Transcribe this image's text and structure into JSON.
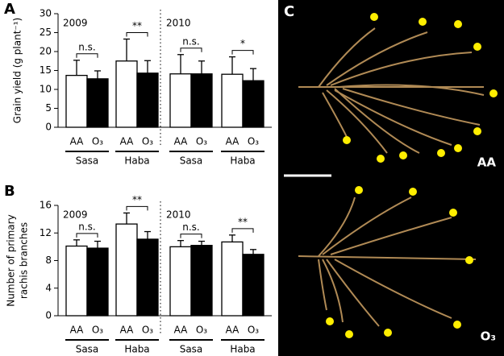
{
  "chart_data": [
    {
      "type": "bar",
      "panel": "A",
      "ylabel": [
        "Grain yield (g plant⁻¹)"
      ],
      "categories": [
        "AA",
        "O₃",
        "AA",
        "O₃",
        "AA",
        "O₃",
        "AA",
        "O₃"
      ],
      "groups": [
        "Sasa",
        "Haba",
        "Sasa",
        "Haba"
      ],
      "years": [
        "2009",
        "2010"
      ],
      "values": [
        13.7,
        12.8,
        17.5,
        14.3,
        14.1,
        14.1,
        14.0,
        12.3
      ],
      "errors": [
        4.0,
        2.1,
        5.8,
        3.3,
        5.1,
        3.4,
        4.6,
        3.2
      ],
      "colors": [
        "#ffffff",
        "#000000",
        "#ffffff",
        "#000000",
        "#ffffff",
        "#000000",
        "#ffffff",
        "#000000"
      ],
      "significance": [
        "n.s.",
        "**",
        "n.s.",
        "*"
      ],
      "ylim": [
        0,
        30
      ],
      "yticks": [
        0,
        5,
        10,
        15,
        20,
        25,
        30
      ]
    },
    {
      "type": "bar",
      "panel": "B",
      "ylabel": [
        "Number of primary",
        "rachis branches"
      ],
      "categories": [
        "AA",
        "O₃",
        "AA",
        "O₃",
        "AA",
        "O₃",
        "AA",
        "O₃"
      ],
      "groups": [
        "Sasa",
        "Haba",
        "Sasa",
        "Haba"
      ],
      "years": [
        "2009",
        "2010"
      ],
      "values": [
        10.1,
        9.8,
        13.3,
        11.1,
        10.0,
        10.2,
        10.7,
        8.9
      ],
      "errors": [
        0.9,
        1.0,
        1.6,
        1.1,
        0.9,
        0.6,
        1.0,
        0.7
      ],
      "colors": [
        "#ffffff",
        "#000000",
        "#ffffff",
        "#000000",
        "#ffffff",
        "#000000",
        "#ffffff",
        "#000000"
      ],
      "significance": [
        "n.s.",
        "**",
        "n.s.",
        "**"
      ],
      "ylim": [
        0,
        16
      ],
      "yticks": [
        0,
        4,
        8,
        12,
        16
      ]
    }
  ],
  "photo": {
    "panel": "C",
    "tags": [
      "AA",
      "O₃"
    ]
  }
}
